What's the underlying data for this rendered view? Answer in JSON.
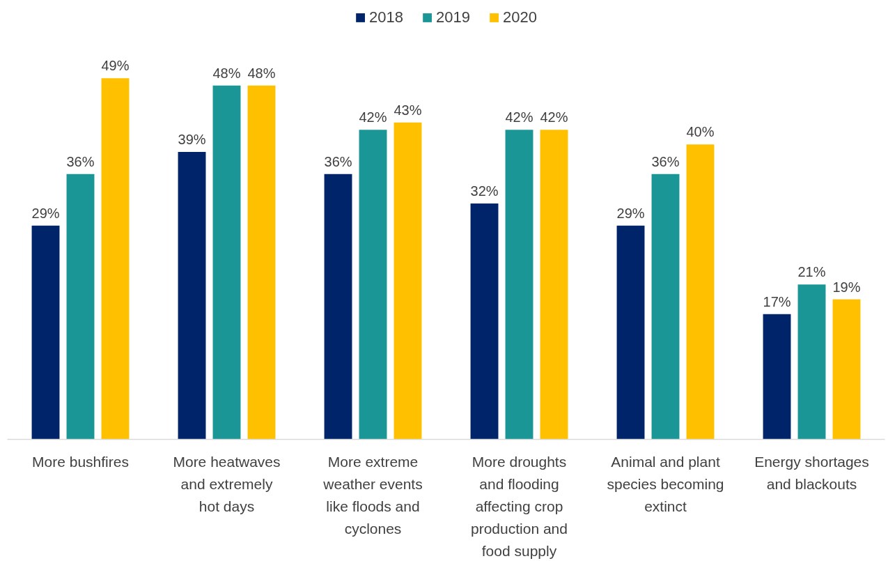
{
  "chart_data": {
    "type": "bar",
    "categories": [
      "More bushfires",
      "More heatwaves and extremely hot days",
      "More extreme weather events like floods and cyclones",
      "More droughts and flooding affecting crop production and food supply",
      "Animal and plant species becoming extinct",
      "Energy shortages and blackouts"
    ],
    "series": [
      {
        "name": "2018",
        "color": "#002469",
        "values": [
          29,
          39,
          36,
          32,
          29,
          17
        ],
        "value_labels": [
          "29%",
          "39%",
          "36%",
          "32%",
          "29%",
          "17%"
        ]
      },
      {
        "name": "2019",
        "color": "#1a9696",
        "values": [
          36,
          48,
          42,
          42,
          36,
          21
        ],
        "value_labels": [
          "36%",
          "48%",
          "42%",
          "42%",
          "36%",
          "21%"
        ]
      },
      {
        "name": "2020",
        "color": "#ffc000",
        "values": [
          49,
          48,
          43,
          42,
          40,
          19
        ],
        "value_labels": [
          "49%",
          "48%",
          "43%",
          "42%",
          "40%",
          "19%"
        ]
      }
    ],
    "legend": "top",
    "grid": false
  }
}
